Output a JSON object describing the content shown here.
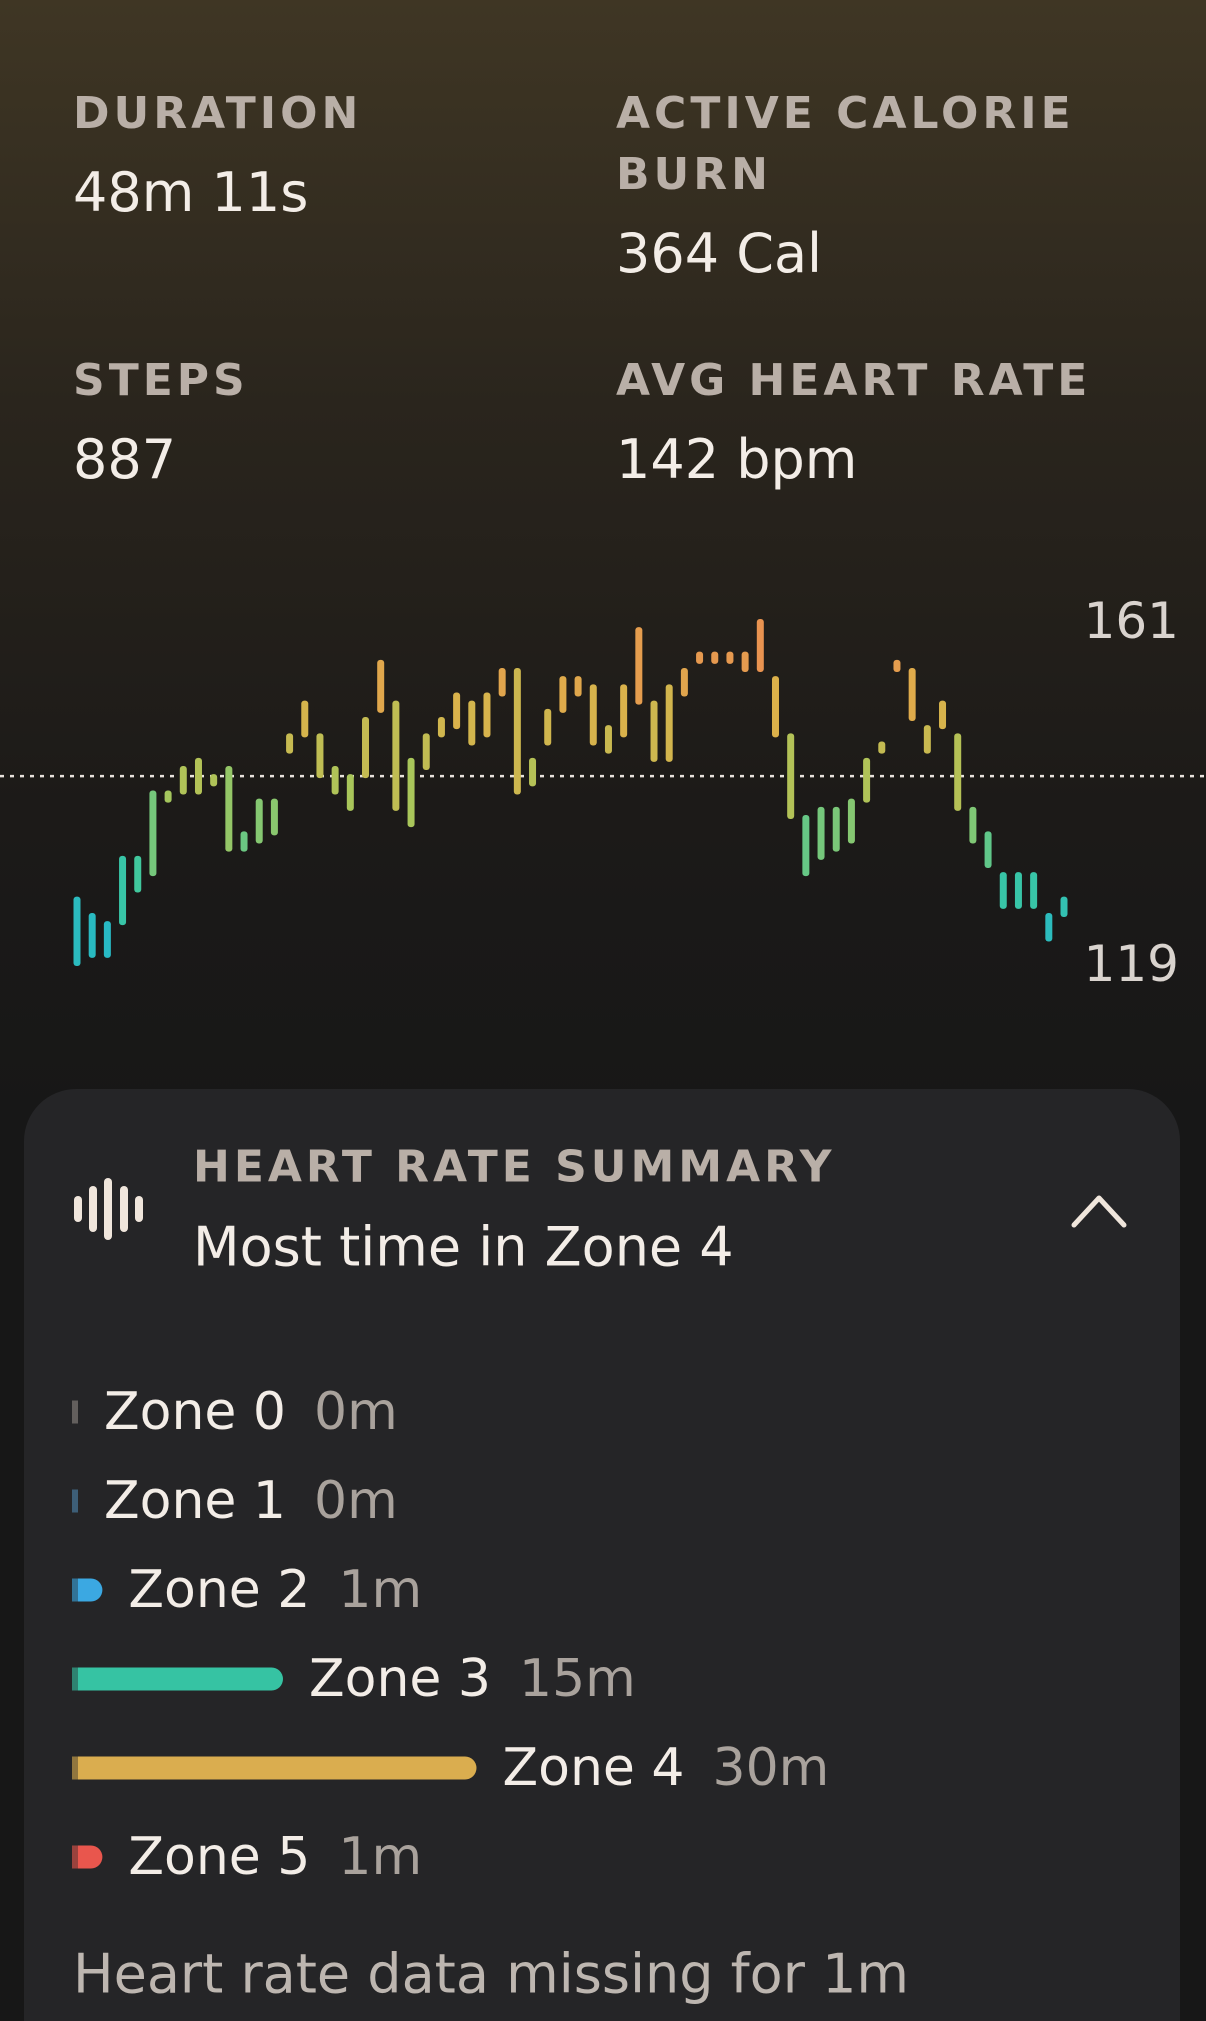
{
  "stats": [
    {
      "label": "DURATION",
      "value": "48m 11s"
    },
    {
      "label": "ACTIVE CALORIE BURN",
      "value": "364 Cal"
    },
    {
      "label": "STEPS",
      "value": "887"
    },
    {
      "label": "AVG HEART RATE",
      "value": "142 bpm"
    }
  ],
  "chart_data": {
    "type": "range-bar",
    "low": [
      119,
      120,
      120,
      124,
      128,
      130,
      139,
      140,
      140,
      141,
      133,
      133,
      134,
      135,
      145,
      147,
      142,
      140,
      138,
      142,
      150,
      138,
      136,
      143,
      147,
      148,
      146,
      147,
      152,
      140,
      141,
      146,
      150,
      152,
      146,
      145,
      147,
      151,
      144,
      144,
      152,
      156,
      156,
      156,
      155,
      155,
      147,
      137,
      130,
      132,
      133,
      134,
      139,
      145,
      155,
      149,
      145,
      148,
      138,
      134,
      131,
      126,
      126,
      126,
      122,
      125
    ],
    "high": [
      127,
      125,
      124,
      132,
      132,
      140,
      140,
      143,
      144,
      142,
      143,
      135,
      139,
      139,
      147,
      151,
      147,
      143,
      142,
      149,
      156,
      151,
      144,
      147,
      149,
      152,
      151,
      152,
      155,
      155,
      144,
      150,
      154,
      154,
      153,
      148,
      153,
      160,
      151,
      153,
      155,
      157,
      157,
      157,
      157,
      161,
      154,
      147,
      137,
      138,
      138,
      139,
      144,
      146,
      156,
      155,
      148,
      151,
      147,
      138,
      135,
      130,
      130,
      130,
      125,
      127
    ],
    "colors": [
      "#20b3d2",
      "#3cc8a0",
      "#a9c65a",
      "#dcb14a",
      "#ee8753"
    ],
    "ylim": [
      119,
      161
    ],
    "yticks": [
      119,
      161
    ],
    "reference_line": 142
  },
  "summary": {
    "title": "HEART RATE SUMMARY",
    "subtitle": "Most time in Zone 4",
    "zones": [
      {
        "name": "Zone 0",
        "minutes": 0,
        "label": "0m",
        "color": "#8e8782"
      },
      {
        "name": "Zone 1",
        "minutes": 0,
        "label": "0m",
        "color": "#4f86ad"
      },
      {
        "name": "Zone 2",
        "minutes": 1,
        "label": "1m",
        "color": "#3ba8e2"
      },
      {
        "name": "Zone 3",
        "minutes": 15,
        "label": "15m",
        "color": "#36c3a3"
      },
      {
        "name": "Zone 4",
        "minutes": 30,
        "label": "30m",
        "color": "#daad4f"
      },
      {
        "name": "Zone 5",
        "minutes": 1,
        "label": "1m",
        "color": "#e9564d"
      }
    ],
    "footer": "Heart rate data missing for 1m"
  }
}
